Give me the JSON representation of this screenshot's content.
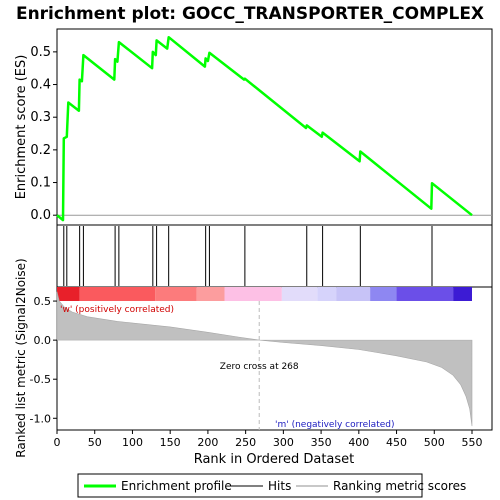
{
  "chart_data": {
    "type": "line",
    "title": "Enrichment plot: GOCC_TRANSPORTER_COMPLEX",
    "es_panel": {
      "ylabel": "Enrichment score (ES)",
      "ylim": [
        -0.03,
        0.57
      ],
      "yticks": [
        0.0,
        0.1,
        0.2,
        0.3,
        0.4,
        0.5
      ],
      "ytick_labels": [
        "0.0",
        "0.1",
        "0.2",
        "0.3",
        "0.4",
        "0.5"
      ],
      "series": [
        {
          "name": "Enrichment profile",
          "color": "#00ff00",
          "x": [
            0,
            8,
            9,
            13,
            15,
            29,
            30,
            33,
            35,
            76,
            77,
            80,
            82,
            126,
            127,
            131,
            132,
            146,
            148,
            196,
            197,
            200,
            202,
            248,
            249,
            330,
            331,
            351,
            352,
            401,
            402,
            496,
            497,
            550
          ],
          "y": [
            0.0,
            -0.015,
            0.235,
            0.24,
            0.345,
            0.32,
            0.415,
            0.41,
            0.49,
            0.415,
            0.478,
            0.47,
            0.53,
            0.45,
            0.5,
            0.49,
            0.535,
            0.51,
            0.545,
            0.455,
            0.48,
            0.472,
            0.497,
            0.415,
            0.418,
            0.267,
            0.275,
            0.24,
            0.253,
            0.165,
            0.195,
            0.02,
            0.098,
            0.0
          ]
        }
      ]
    },
    "hits": {
      "name": "Hits",
      "positions": [
        9,
        13,
        30,
        35,
        77,
        82,
        127,
        132,
        148,
        197,
        202,
        249,
        331,
        352,
        402,
        497
      ]
    },
    "ranking_panel": {
      "ylabel": "Ranked list metric (Signal2Noise)",
      "ylim": [
        -1.15,
        0.68
      ],
      "yticks": [
        0.5,
        0.0,
        -0.5,
        -1.0
      ],
      "ytick_labels": [
        "0.5",
        "0.0",
        "-0.5",
        "-1.0"
      ],
      "series_name": "Ranking metric scores",
      "metric_x": [
        0,
        3,
        10,
        20,
        40,
        80,
        150,
        200,
        240,
        268,
        300,
        350,
        400,
        450,
        490,
        510,
        525,
        535,
        542,
        547,
        550
      ],
      "metric_y": [
        0.62,
        0.5,
        0.42,
        0.36,
        0.3,
        0.24,
        0.17,
        0.1,
        0.04,
        0.0,
        -0.03,
        -0.07,
        -0.12,
        -0.2,
        -0.28,
        -0.35,
        -0.45,
        -0.57,
        -0.72,
        -0.88,
        -1.1
      ],
      "zero_cross_label": "Zero cross at 268",
      "zero_cross_x": 268,
      "pos_label": "'w' (positively correlated)",
      "neg_label": "'m' (negatively correlated)"
    },
    "xaxis": {
      "xlabel": "Rank in Ordered Dataset",
      "xlim": [
        0,
        550
      ],
      "xticks": [
        0,
        50,
        100,
        150,
        200,
        250,
        300,
        350,
        400,
        450,
        500,
        550
      ],
      "xtick_labels": [
        "0",
        "50",
        "100",
        "150",
        "200",
        "250",
        "300",
        "350",
        "400",
        "450",
        "500",
        "550"
      ]
    },
    "colorbar": {
      "segments": [
        {
          "from": 0,
          "to": 30,
          "color": "#e8202a"
        },
        {
          "from": 30,
          "to": 130,
          "color": "#fa5a5e"
        },
        {
          "from": 130,
          "to": 185,
          "color": "#fc7b7c"
        },
        {
          "from": 185,
          "to": 222,
          "color": "#fc9d9e"
        },
        {
          "from": 222,
          "to": 298,
          "color": "#fdc0e5"
        },
        {
          "from": 298,
          "to": 345,
          "color": "#e2dcfa"
        },
        {
          "from": 345,
          "to": 370,
          "color": "#d6d3fb"
        },
        {
          "from": 370,
          "to": 415,
          "color": "#c7c3f7"
        },
        {
          "from": 415,
          "to": 450,
          "color": "#8e87f2"
        },
        {
          "from": 450,
          "to": 525,
          "color": "#6b4fe8"
        },
        {
          "from": 525,
          "to": 550,
          "color": "#3c1bd4"
        }
      ]
    },
    "legend": {
      "items": [
        {
          "label": "Enrichment profile",
          "color": "#00ff00"
        },
        {
          "label": "Hits",
          "color": "#000000"
        },
        {
          "label": "Ranking metric scores",
          "color": "#c8c8c8"
        }
      ]
    }
  }
}
